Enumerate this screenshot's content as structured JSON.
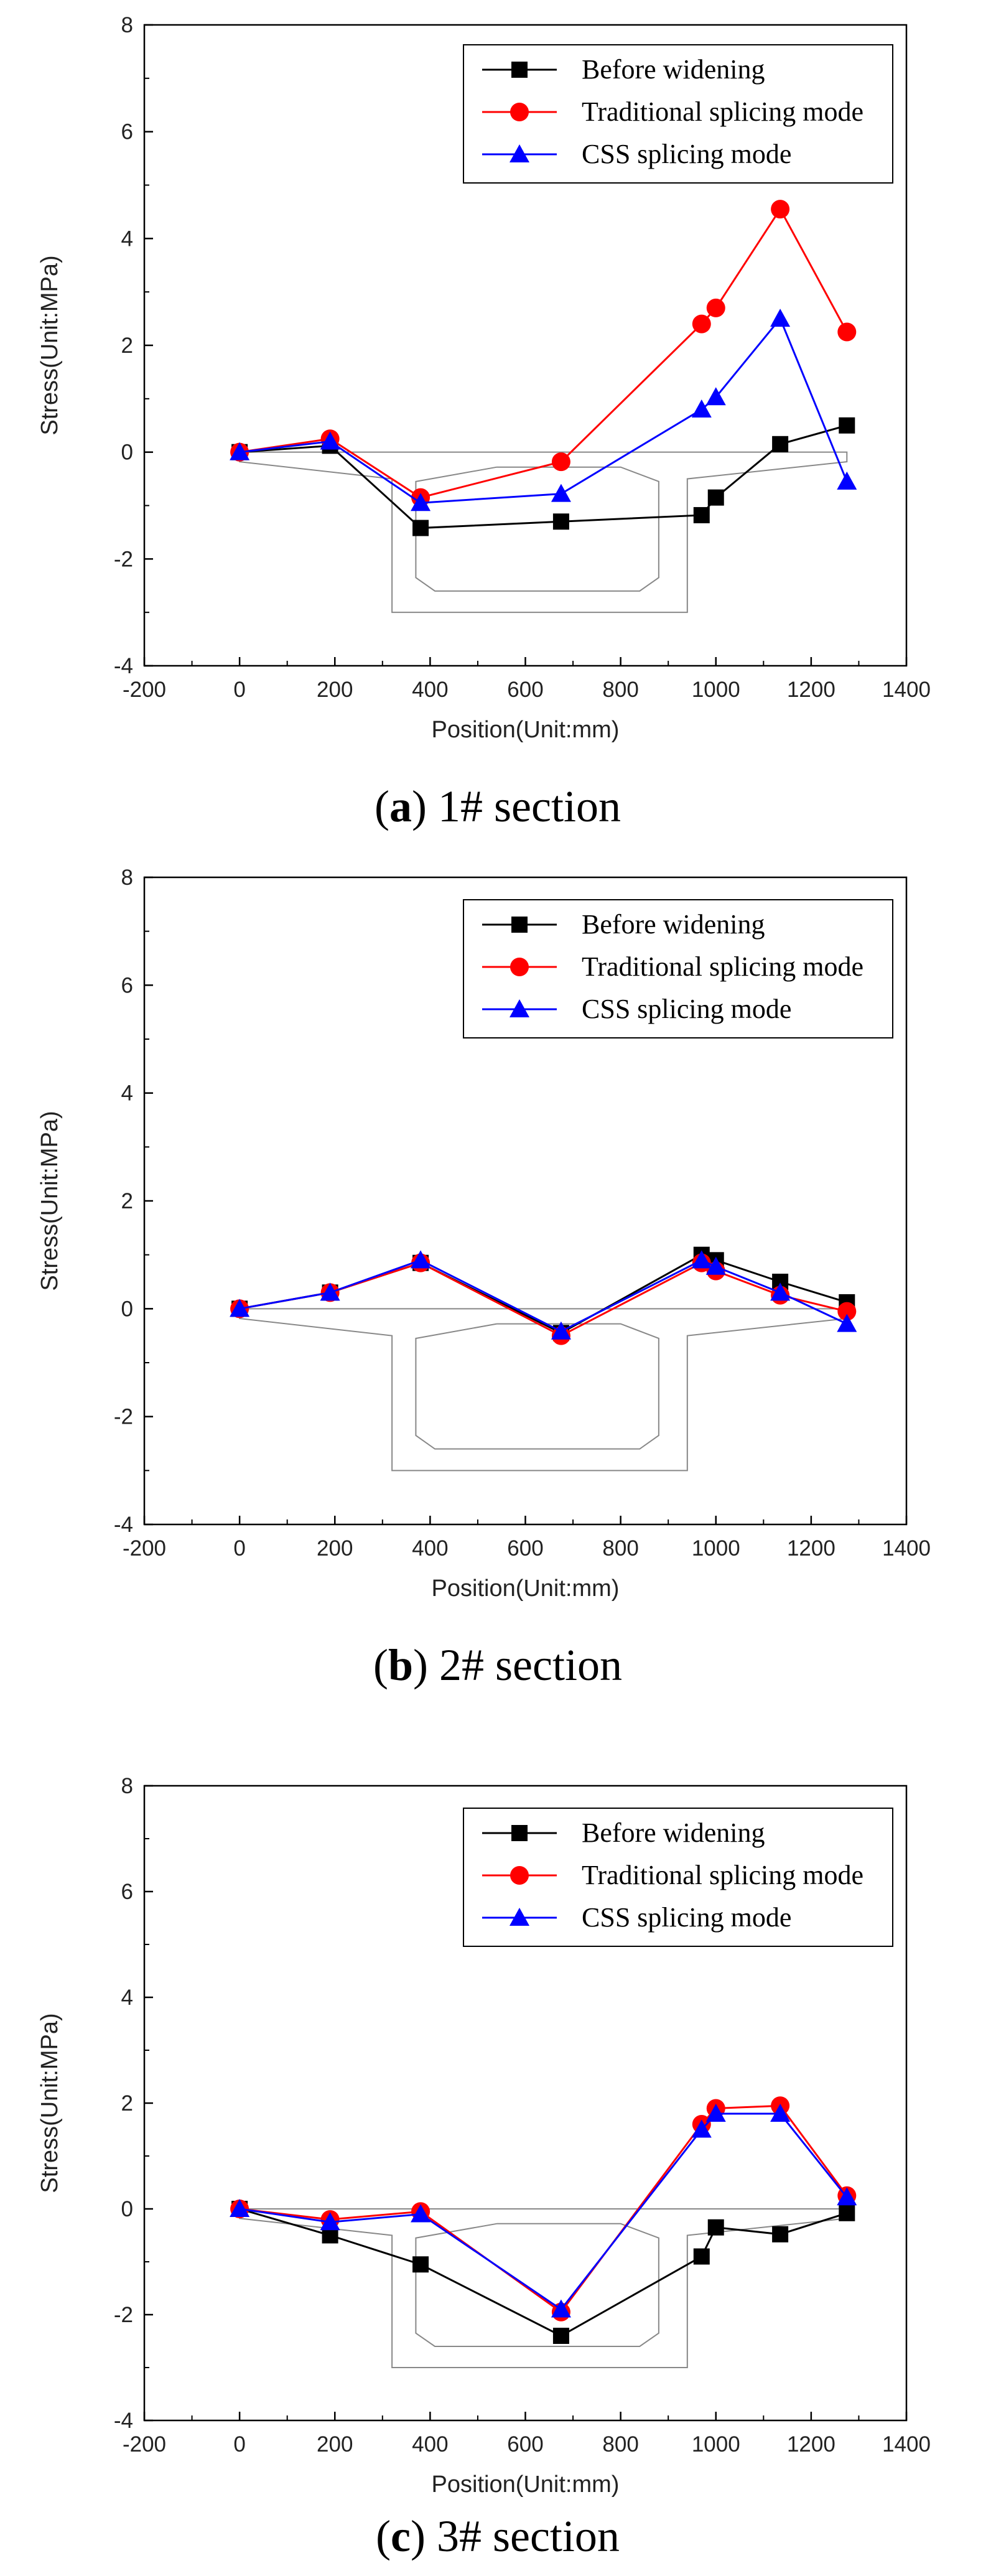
{
  "figure": {
    "panels": [
      {
        "caption_letter": "a",
        "caption_text": "1# section"
      },
      {
        "caption_letter": "b",
        "caption_text": "2# section"
      },
      {
        "caption_letter": "c",
        "caption_text": "3# section"
      }
    ]
  },
  "chart_data": [
    {
      "type": "line",
      "title": "",
      "xlabel": "Position(Unit:mm)",
      "ylabel": "Stress(Unit:MPa)",
      "xlim": [
        -200,
        1400
      ],
      "ylim": [
        -4,
        8
      ],
      "xticks": [
        -200,
        0,
        200,
        400,
        600,
        800,
        1000,
        1200,
        1400
      ],
      "yticks": [
        -4,
        -2,
        0,
        2,
        4,
        6,
        8
      ],
      "legend_position": "top-right",
      "series": [
        {
          "name": "Before widening",
          "color": "#000000",
          "marker": "square",
          "x": [
            0,
            190,
            380,
            675,
            970,
            1000,
            1135,
            1275
          ],
          "y": [
            0.0,
            0.12,
            -1.42,
            -1.3,
            -1.18,
            -0.85,
            0.15,
            0.5
          ]
        },
        {
          "name": "Traditional splicing mode",
          "color": "#ff0000",
          "marker": "circle",
          "x": [
            0,
            190,
            380,
            675,
            970,
            1000,
            1135,
            1275
          ],
          "y": [
            0.0,
            0.25,
            -0.85,
            -0.18,
            2.4,
            2.7,
            4.55,
            2.25
          ]
        },
        {
          "name": "CSS splicing mode",
          "color": "#0000ff",
          "marker": "triangle",
          "x": [
            0,
            190,
            380,
            675,
            970,
            1000,
            1135,
            1275
          ],
          "y": [
            0.0,
            0.2,
            -0.95,
            -0.78,
            0.8,
            1.03,
            2.5,
            -0.55
          ]
        }
      ]
    },
    {
      "type": "line",
      "title": "",
      "xlabel": "Position(Unit:mm)",
      "ylabel": "Stress(Unit:MPa)",
      "xlim": [
        -200,
        1400
      ],
      "ylim": [
        -4,
        8
      ],
      "xticks": [
        -200,
        0,
        200,
        400,
        600,
        800,
        1000,
        1200,
        1400
      ],
      "yticks": [
        -4,
        -2,
        0,
        2,
        4,
        6,
        8
      ],
      "legend_position": "top-right",
      "series": [
        {
          "name": "Before widening",
          "color": "#000000",
          "marker": "square",
          "x": [
            0,
            190,
            380,
            675,
            970,
            1000,
            1135,
            1275
          ],
          "y": [
            0.0,
            0.3,
            0.85,
            -0.45,
            1.0,
            0.9,
            0.5,
            0.12
          ]
        },
        {
          "name": "Traditional splicing mode",
          "color": "#ff0000",
          "marker": "circle",
          "x": [
            0,
            190,
            380,
            675,
            970,
            1000,
            1135,
            1275
          ],
          "y": [
            0.0,
            0.3,
            0.85,
            -0.5,
            0.85,
            0.7,
            0.25,
            -0.05
          ]
        },
        {
          "name": "CSS splicing mode",
          "color": "#0000ff",
          "marker": "triangle",
          "x": [
            0,
            190,
            380,
            675,
            970,
            1000,
            1135,
            1275
          ],
          "y": [
            0.0,
            0.3,
            0.9,
            -0.42,
            0.9,
            0.78,
            0.3,
            -0.28
          ]
        }
      ]
    },
    {
      "type": "line",
      "title": "",
      "xlabel": "Position(Unit:mm)",
      "ylabel": "Stress(Unit:MPa)",
      "xlim": [
        -200,
        1400
      ],
      "ylim": [
        -4,
        8
      ],
      "xticks": [
        -200,
        0,
        200,
        400,
        600,
        800,
        1000,
        1200,
        1400
      ],
      "yticks": [
        -4,
        -2,
        0,
        2,
        4,
        6,
        8
      ],
      "legend_position": "top-right",
      "series": [
        {
          "name": "Before widening",
          "color": "#000000",
          "marker": "square",
          "x": [
            0,
            190,
            380,
            675,
            970,
            1000,
            1135,
            1275
          ],
          "y": [
            0.0,
            -0.5,
            -1.05,
            -2.4,
            -0.9,
            -0.35,
            -0.48,
            -0.08
          ]
        },
        {
          "name": "Traditional splicing mode",
          "color": "#ff0000",
          "marker": "circle",
          "x": [
            0,
            190,
            380,
            675,
            970,
            1000,
            1135,
            1275
          ],
          "y": [
            0.0,
            -0.2,
            -0.05,
            -1.95,
            1.6,
            1.9,
            1.95,
            0.25
          ]
        },
        {
          "name": "CSS splicing mode",
          "color": "#0000ff",
          "marker": "triangle",
          "x": [
            0,
            190,
            380,
            675,
            970,
            1000,
            1135,
            1275
          ],
          "y": [
            0.0,
            -0.25,
            -0.1,
            -1.9,
            1.5,
            1.8,
            1.8,
            0.22
          ]
        }
      ]
    }
  ]
}
